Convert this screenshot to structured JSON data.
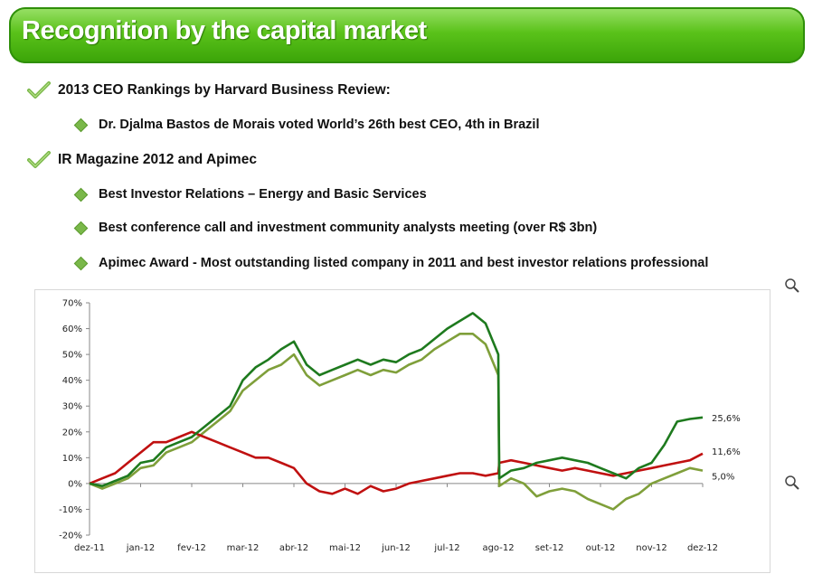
{
  "banner": {
    "title": "Recognition by the capital market"
  },
  "sections": [
    {
      "label": "2013 CEO Rankings by Harvard Business Review:",
      "bullets": [
        "Dr. Djalma Bastos de Morais voted World’s 26th best CEO, 4th in Brazil"
      ]
    },
    {
      "label": "IR Magazine 2012 and Apimec",
      "bullets": [
        "Best Investor Relations – Energy and Basic Services",
        "Best conference call  and investment community analysts meeting (over R$ 3bn)",
        "Apimec Award - Most outstanding listed company in 2011 and best investor relations professional"
      ]
    }
  ],
  "icons": {
    "check": "check-icon",
    "bullet": "diamond-bullet-icon",
    "zoom": "magnifier-icon"
  },
  "chart_data": {
    "type": "line",
    "title": "",
    "xlabel": "",
    "ylabel": "",
    "x_ticks": [
      "dez-11",
      "jan-12",
      "fev-12",
      "mar-12",
      "abr-12",
      "mai-12",
      "jun-12",
      "jul-12",
      "ago-12",
      "set-12",
      "out-12",
      "nov-12",
      "dez-12"
    ],
    "y_ticks": [
      "70%",
      "60%",
      "50%",
      "40%",
      "30%",
      "20%",
      "10%",
      "0%",
      "-10%",
      "-20%"
    ],
    "ylim": [
      -20,
      70
    ],
    "grid": false,
    "x_months": [
      0,
      0.25,
      0.5,
      0.75,
      1,
      1.25,
      1.5,
      1.75,
      2,
      2.25,
      2.5,
      2.75,
      3,
      3.25,
      3.5,
      3.75,
      4,
      4.25,
      4.5,
      4.75,
      5,
      5.25,
      5.5,
      5.75,
      6,
      6.25,
      6.5,
      6.75,
      7,
      7.25,
      7.5,
      7.75,
      8,
      8.02,
      8.25,
      8.5,
      8.75,
      9,
      9.25,
      9.5,
      9.75,
      10,
      10.25,
      10.5,
      10.75,
      11,
      11.25,
      11.5,
      11.75,
      12
    ],
    "series": [
      {
        "color": "#1e7a1e",
        "end_label": "25,6%",
        "values": [
          0,
          -1,
          1,
          3,
          8,
          9,
          14,
          16,
          18,
          22,
          26,
          30,
          40,
          45,
          48,
          52,
          55,
          46,
          42,
          44,
          46,
          48,
          46,
          48,
          47,
          50,
          52,
          56,
          60,
          63,
          66,
          62,
          50,
          2,
          5,
          6,
          8,
          9,
          10,
          9,
          8,
          6,
          4,
          2,
          6,
          8,
          15,
          24,
          25,
          25.6
        ]
      },
      {
        "color": "#7f9f3a",
        "end_label": "5,0%",
        "values": [
          0,
          -2,
          0,
          2,
          6,
          7,
          12,
          14,
          16,
          20,
          24,
          28,
          36,
          40,
          44,
          46,
          50,
          42,
          38,
          40,
          42,
          44,
          42,
          44,
          43,
          46,
          48,
          52,
          55,
          58,
          58,
          54,
          42,
          -1,
          2,
          0,
          -5,
          -3,
          -2,
          -3,
          -6,
          -8,
          -10,
          -6,
          -4,
          0,
          2,
          4,
          6,
          5
        ]
      },
      {
        "color": "#c01010",
        "end_label": "11,6%",
        "values": [
          0,
          2,
          4,
          8,
          12,
          16,
          16,
          18,
          20,
          18,
          16,
          14,
          12,
          10,
          10,
          8,
          6,
          0,
          -3,
          -4,
          -2,
          -4,
          -1,
          -3,
          -2,
          0,
          1,
          2,
          3,
          4,
          4,
          3,
          4,
          8,
          9,
          8,
          7,
          6,
          5,
          6,
          5,
          4,
          3,
          4,
          5,
          6,
          7,
          8,
          9,
          11.6
        ]
      }
    ]
  }
}
